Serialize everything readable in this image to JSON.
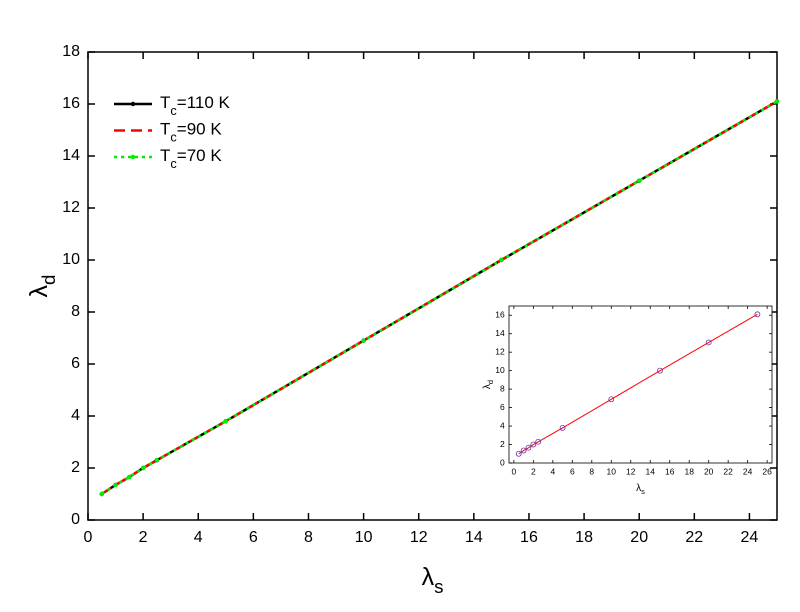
{
  "chart_data": [
    {
      "type": "line",
      "x_label": "λs",
      "y_label": "λd",
      "x": [
        0.5,
        1,
        1.5,
        2,
        2.5,
        5,
        10,
        15,
        20,
        25
      ],
      "series": [
        {
          "name": "Tc=110 K",
          "color": "#000000",
          "dash": "solid",
          "markers": true,
          "values": [
            1.0,
            1.35,
            1.65,
            2.0,
            2.3,
            3.8,
            6.9,
            10.0,
            13.05,
            16.1
          ]
        },
        {
          "name": "Tc=90 K",
          "color": "#ff0000",
          "dash": "dashed",
          "markers": false,
          "values": [
            1.0,
            1.35,
            1.65,
            2.0,
            2.3,
            3.8,
            6.9,
            10.0,
            13.05,
            16.1
          ]
        },
        {
          "name": "Tc=70 K",
          "color": "#00ee00",
          "dash": "dotted",
          "markers": true,
          "values": [
            1.0,
            1.35,
            1.65,
            2.0,
            2.3,
            3.8,
            6.9,
            10.0,
            13.05,
            16.1
          ]
        }
      ],
      "xlim": [
        0,
        25
      ],
      "ylim": [
        0,
        18
      ],
      "xticks": [
        0,
        2,
        4,
        6,
        8,
        10,
        12,
        14,
        16,
        18,
        20,
        22,
        24
      ],
      "yticks": [
        0,
        2,
        4,
        6,
        8,
        10,
        12,
        14,
        16,
        18
      ],
      "legend": "upper left"
    },
    {
      "type": "scatter",
      "x_label": "λs",
      "y_label": "λd",
      "x": [
        0.5,
        1,
        1.5,
        2,
        2.5,
        5,
        10,
        15,
        20,
        25
      ],
      "series": [
        {
          "line_color": "#ff0000",
          "marker_color": "#7030a0",
          "values": [
            1.0,
            1.35,
            1.65,
            2.0,
            2.3,
            3.8,
            6.9,
            10.0,
            13.05,
            16.1
          ]
        }
      ],
      "xlim": [
        -0.5,
        26.5
      ],
      "ylim": [
        0,
        17
      ],
      "xticks": [
        0,
        2,
        4,
        6,
        8,
        10,
        12,
        14,
        16,
        18,
        20,
        22,
        24,
        26
      ],
      "yticks": [
        0,
        2,
        4,
        6,
        8,
        10,
        12,
        14,
        16
      ]
    }
  ]
}
